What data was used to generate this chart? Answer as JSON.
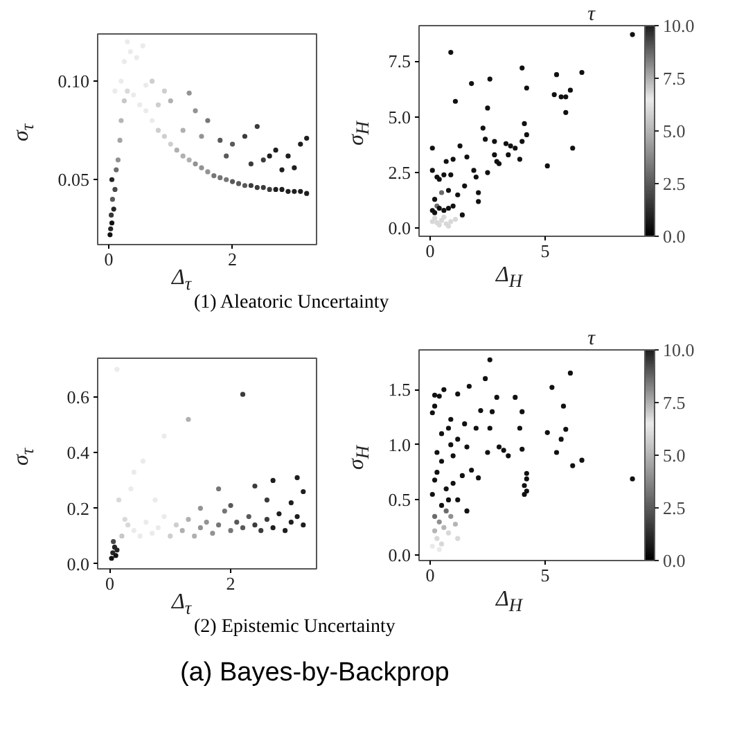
{
  "chart_data": [
    {
      "type": "scatter",
      "xlabel": "Δ$_{τ}$",
      "ylabel": "σ$_{τ}$",
      "marker": "circle",
      "annotations": [
        "(1) Aleatoric Uncertainty"
      ],
      "xlim": [
        -0.18,
        3.36
      ],
      "ylim": [
        0.017,
        0.124
      ],
      "xticks": [
        0,
        2
      ],
      "yticks": [
        {
          "value": 0.05,
          "label": "0.05"
        },
        {
          "value": 0.1,
          "label": "0.10"
        }
      ],
      "x": [
        0.02,
        0.03,
        0.05,
        0.04,
        0.08,
        0.06,
        0.1,
        0.05,
        0.12,
        0.15,
        0.18,
        0.2,
        0.25,
        0.3,
        0.2,
        0.25,
        0.35,
        0.3,
        0.45,
        0.55,
        0.1,
        0.4,
        0.5,
        0.6,
        0.7,
        0.8,
        0.9,
        1.0,
        1.1,
        1.2,
        1.3,
        1.4,
        1.5,
        1.6,
        1.7,
        1.8,
        1.9,
        2.0,
        2.1,
        2.2,
        2.3,
        2.4,
        2.5,
        2.6,
        2.7,
        2.8,
        2.9,
        3.0,
        3.1,
        3.2,
        0.7,
        0.9,
        1.0,
        1.3,
        1.4,
        1.6,
        1.8,
        2.0,
        2.2,
        2.4,
        2.5,
        2.7,
        2.9,
        3.1,
        3.2,
        0.6,
        0.8,
        1.2,
        1.5,
        1.9,
        2.3,
        2.6,
        2.8,
        3.0
      ],
      "values": [
        0.022,
        0.025,
        0.028,
        0.032,
        0.035,
        0.04,
        0.045,
        0.05,
        0.055,
        0.06,
        0.07,
        0.08,
        0.09,
        0.095,
        0.1,
        0.11,
        0.115,
        0.12,
        0.112,
        0.118,
        0.095,
        0.093,
        0.088,
        0.085,
        0.08,
        0.075,
        0.072,
        0.068,
        0.065,
        0.062,
        0.06,
        0.058,
        0.056,
        0.054,
        0.052,
        0.051,
        0.05,
        0.049,
        0.048,
        0.047,
        0.047,
        0.046,
        0.046,
        0.045,
        0.045,
        0.045,
        0.044,
        0.044,
        0.044,
        0.043,
        0.1,
        0.095,
        0.09,
        0.094,
        0.085,
        0.08,
        0.07,
        0.068,
        0.072,
        0.077,
        0.06,
        0.065,
        0.062,
        0.068,
        0.071,
        0.098,
        0.088,
        0.075,
        0.072,
        0.062,
        0.058,
        0.062,
        0.055,
        0.056
      ],
      "colors": [
        "#121212",
        "#242424",
        "#121212",
        "#363636",
        "#242424",
        "#5a5a5a",
        "#484848",
        "#242424",
        "#6c6c6c",
        "#919191",
        "#a3a3a3",
        "#b5b5b5",
        "#c7c7c7",
        "#d9d9d9",
        "#ebebeb",
        "#ebebeb",
        "#ebebeb",
        "#ebebeb",
        "#ebebeb",
        "#ebebeb",
        "#ebebeb",
        "#ebebeb",
        "#ebebeb",
        "#ebebeb",
        "#ebebeb",
        "#cecece",
        "#cecece",
        "#cecece",
        "#b0b0b0",
        "#b0b0b0",
        "#b0b0b0",
        "#939393",
        "#939393",
        "#939393",
        "#767676",
        "#767676",
        "#767676",
        "#595959",
        "#595959",
        "#595959",
        "#3b3b3b",
        "#3b3b3b",
        "#3b3b3b",
        "#3b3b3b",
        "#1e1e1e",
        "#1e1e1e",
        "#1e1e1e",
        "#1e1e1e",
        "#1e1e1e",
        "#1e1e1e",
        "#cecece",
        "#cecece",
        "#b0b0b0",
        "#939393",
        "#939393",
        "#767676",
        "#595959",
        "#595959",
        "#3b3b3b",
        "#3b3b3b",
        "#3b3b3b",
        "#1e1e1e",
        "#1e1e1e",
        "#1e1e1e",
        "#1e1e1e",
        "#ebebeb",
        "#cecece",
        "#b0b0b0",
        "#939393",
        "#595959",
        "#3b3b3b",
        "#1e1e1e",
        "#1e1e1e",
        "#1e1e1e"
      ]
    },
    {
      "type": "scatter",
      "xlabel": "Δ$_{H}$",
      "ylabel": "σ$_{H}$",
      "marker": "circle",
      "clabel": "τ",
      "clim": [
        0,
        10
      ],
      "cticks": [
        {
          "value": 0,
          "label": "0.0"
        },
        {
          "value": 2.5,
          "label": "2.5"
        },
        {
          "value": 5,
          "label": "5.0"
        },
        {
          "value": 7.5,
          "label": "7.5"
        },
        {
          "value": 10,
          "label": "10.0"
        }
      ],
      "xlim": [
        -0.48,
        9.34
      ],
      "ylim": [
        -0.36,
        9.1
      ],
      "xticks": [
        0,
        5
      ],
      "yticks": [
        {
          "value": 0,
          "label": "0.0"
        },
        {
          "value": 2.5,
          "label": "2.5"
        },
        {
          "value": 5,
          "label": "5.0"
        },
        {
          "value": 7.5,
          "label": "7.5"
        }
      ],
      "x": [
        0.9,
        1.1,
        1.8,
        2.6,
        2.5,
        4.0,
        4.2,
        5.5,
        5.4,
        5.7,
        5.9,
        6.1,
        6.6,
        5.9,
        6.2,
        5.1,
        8.8,
        2.3,
        2.4,
        2.8,
        3.3,
        3.5,
        3.7,
        4.1,
        4.0,
        4.2,
        3.9,
        3.4,
        2.8,
        2.9,
        3.0,
        2.5,
        1.3,
        1.6,
        0.1,
        0.1,
        0.3,
        0.4,
        0.6,
        0.9,
        0.7,
        1.0,
        1.9,
        2.0,
        2.1,
        2.1,
        1.5,
        1.2,
        0.8,
        0.5,
        0.2,
        0.3,
        0.1,
        0.2,
        0.4,
        0.6,
        0.8,
        1.0,
        1.4,
        0.1,
        0.3,
        0.5,
        0.7,
        0.9,
        0.2,
        0.6,
        1.1,
        0.4,
        0.8
      ],
      "values": [
        7.9,
        5.7,
        6.5,
        6.7,
        5.4,
        7.2,
        6.3,
        6.9,
        6.0,
        5.9,
        5.9,
        6.2,
        7.0,
        5.2,
        3.6,
        2.8,
        8.7,
        4.5,
        4.0,
        3.9,
        3.8,
        3.7,
        3.6,
        4.7,
        3.9,
        4.2,
        3.1,
        3.3,
        3.3,
        3.0,
        2.9,
        2.5,
        3.7,
        3.2,
        3.6,
        2.6,
        2.3,
        2.2,
        2.4,
        2.4,
        3.0,
        3.1,
        2.6,
        2.3,
        1.6,
        1.2,
        1.9,
        1.5,
        1.7,
        1.6,
        1.3,
        1.0,
        0.8,
        0.7,
        0.9,
        0.8,
        0.9,
        1.0,
        0.6,
        0.3,
        0.25,
        0.35,
        0.2,
        0.3,
        0.45,
        0.5,
        0.4,
        0.15,
        0.1
      ],
      "cvalues": [
        0.5,
        0.5,
        0.5,
        0.5,
        0.5,
        0.5,
        0.5,
        0.5,
        0.5,
        0.5,
        0.5,
        0.5,
        0.5,
        0.5,
        0.5,
        0.5,
        0.5,
        0.5,
        0.5,
        0.5,
        0.5,
        0.5,
        0.5,
        0.5,
        0.5,
        0.5,
        0.5,
        0.5,
        0.5,
        0.5,
        0.5,
        0.5,
        0.5,
        0.5,
        0.5,
        0.5,
        0.5,
        0.5,
        0.5,
        0.5,
        0.5,
        0.5,
        0.5,
        0.5,
        0.5,
        0.5,
        0.5,
        0.5,
        0.5,
        3,
        0.5,
        3,
        0.5,
        0.5,
        0.5,
        0.5,
        0.5,
        0.5,
        0.5,
        6,
        6,
        6,
        6,
        6,
        6,
        6,
        6,
        6,
        6
      ]
    },
    {
      "type": "scatter",
      "xlabel": "Δ$_{τ}$",
      "ylabel": "σ$_{τ}$",
      "marker": "circle",
      "annotations": [
        "(2) Epistemic Uncertainty",
        "(a) Bayes-by-Backprop"
      ],
      "xlim": [
        -0.2,
        3.42
      ],
      "ylim": [
        -0.018,
        0.74
      ],
      "xticks": [
        0,
        2
      ],
      "yticks": [
        {
          "value": 0,
          "label": "0.0"
        },
        {
          "value": 0.2,
          "label": "0.2"
        },
        {
          "value": 0.4,
          "label": "0.4"
        },
        {
          "value": 0.6,
          "label": "0.6"
        }
      ],
      "x": [
        0.03,
        0.05,
        0.08,
        0.1,
        0.06,
        0.12,
        0.12,
        0.15,
        0.35,
        0.4,
        0.55,
        0.75,
        0.9,
        1.3,
        2.2,
        0.2,
        0.3,
        0.4,
        0.5,
        0.6,
        0.7,
        0.8,
        0.9,
        1.0,
        1.1,
        1.2,
        1.3,
        1.4,
        1.5,
        1.6,
        1.7,
        1.8,
        1.9,
        2.0,
        2.1,
        2.2,
        2.3,
        2.4,
        2.5,
        2.6,
        2.7,
        2.8,
        2.9,
        3.0,
        3.1,
        3.2,
        0.25,
        1.5,
        2.4,
        2.7,
        3.1,
        3.2,
        1.8,
        2.0,
        2.6,
        3.0
      ],
      "values": [
        0.02,
        0.04,
        0.06,
        0.03,
        0.08,
        0.05,
        0.7,
        0.23,
        0.27,
        0.33,
        0.37,
        0.23,
        0.46,
        0.52,
        0.61,
        0.1,
        0.14,
        0.12,
        0.1,
        0.15,
        0.11,
        0.13,
        0.17,
        0.1,
        0.14,
        0.12,
        0.16,
        0.1,
        0.13,
        0.15,
        0.11,
        0.14,
        0.19,
        0.12,
        0.15,
        0.13,
        0.17,
        0.14,
        0.12,
        0.16,
        0.13,
        0.18,
        0.12,
        0.15,
        0.17,
        0.14,
        0.16,
        0.2,
        0.28,
        0.3,
        0.31,
        0.26,
        0.27,
        0.21,
        0.23,
        0.22
      ],
      "colors": [
        "#121212",
        "#242424",
        "#242424",
        "#121212",
        "#484848",
        "#242424",
        "#ebebeb",
        "#d9d9d9",
        "#ebebeb",
        "#ebebeb",
        "#ebebeb",
        "#ebebeb",
        "#ebebeb",
        "#b0b0b0",
        "#3b3b3b",
        "#c7c7c7",
        "#d9d9d9",
        "#ebebeb",
        "#ebebeb",
        "#ebebeb",
        "#ebebeb",
        "#ebebeb",
        "#ebebeb",
        "#cecece",
        "#cecece",
        "#b0b0b0",
        "#b0b0b0",
        "#b0b0b0",
        "#939393",
        "#939393",
        "#939393",
        "#767676",
        "#767676",
        "#767676",
        "#595959",
        "#595959",
        "#595959",
        "#3b3b3b",
        "#3b3b3b",
        "#3b3b3b",
        "#1e1e1e",
        "#1e1e1e",
        "#1e1e1e",
        "#1e1e1e",
        "#1e1e1e",
        "#1e1e1e",
        "#d9d9d9",
        "#939393",
        "#3b3b3b",
        "#1e1e1e",
        "#1e1e1e",
        "#1e1e1e",
        "#767676",
        "#595959",
        "#3b3b3b",
        "#1e1e1e"
      ]
    },
    {
      "type": "scatter",
      "xlabel": "Δ$_{H}$",
      "ylabel": "σ$_{H}$",
      "marker": "circle",
      "clabel": "τ",
      "clim": [
        0,
        10
      ],
      "cticks": [
        {
          "value": 0,
          "label": "0.0"
        },
        {
          "value": 2.5,
          "label": "2.5"
        },
        {
          "value": 5,
          "label": "5.0"
        },
        {
          "value": 7.5,
          "label": "7.5"
        },
        {
          "value": 10,
          "label": "10.0"
        }
      ],
      "xlim": [
        -0.48,
        9.34
      ],
      "ylim": [
        -0.05,
        1.86
      ],
      "xticks": [
        0,
        5
      ],
      "yticks": [
        {
          "value": 0,
          "label": "0.0"
        },
        {
          "value": 0.5,
          "label": "0.5"
        },
        {
          "value": 1,
          "label": "1.0"
        },
        {
          "value": 1.5,
          "label": "1.5"
        }
      ],
      "x": [
        2.6,
        6.1,
        2.4,
        5.3,
        0.6,
        1.7,
        0.2,
        0.4,
        1.2,
        2.9,
        3.7,
        5.8,
        2.2,
        2.7,
        4.0,
        0.9,
        0.8,
        1.5,
        2.0,
        2.6,
        3.9,
        5.1,
        5.9,
        0.1,
        0.2,
        0.5,
        1.2,
        0.9,
        1.6,
        3.0,
        3.2,
        3.4,
        4.0,
        5.5,
        5.7,
        6.6,
        6.2,
        2.5,
        0.3,
        0.5,
        1.0,
        4.2,
        4.2,
        4.1,
        4.2,
        4.1,
        8.8,
        2.1,
        1.8,
        1.4,
        1.0,
        0.7,
        0.3,
        0.2,
        0.1,
        0.5,
        0.8,
        1.2,
        1.6,
        0.2,
        0.4,
        0.6,
        0.8,
        0.3,
        0.1,
        0.5,
        0.9,
        1.1,
        0.2,
        0.7,
        1.2,
        0.4
      ],
      "values": [
        1.77,
        1.65,
        1.6,
        1.52,
        1.5,
        1.53,
        1.45,
        1.44,
        1.46,
        1.43,
        1.43,
        1.35,
        1.31,
        1.3,
        1.3,
        1.23,
        1.15,
        1.19,
        1.15,
        1.15,
        1.15,
        1.11,
        1.14,
        1.29,
        1.35,
        1.1,
        1.05,
        1.0,
        0.98,
        0.98,
        0.95,
        0.9,
        0.96,
        0.93,
        1.05,
        0.86,
        0.81,
        0.93,
        0.93,
        0.85,
        0.9,
        0.74,
        0.69,
        0.63,
        0.58,
        0.55,
        0.69,
        0.7,
        0.77,
        0.72,
        0.65,
        0.6,
        0.75,
        0.68,
        0.55,
        0.45,
        0.5,
        0.5,
        0.4,
        0.35,
        0.3,
        0.25,
        0.2,
        0.15,
        0.08,
        0.1,
        0.35,
        0.28,
        0.22,
        0.4,
        0.15,
        0.05
      ],
      "cvalues": [
        0.5,
        0.5,
        0.5,
        0.5,
        0.5,
        0.5,
        0.5,
        0.5,
        0.5,
        0.5,
        0.5,
        0.5,
        0.5,
        0.5,
        0.5,
        0.5,
        0.5,
        0.5,
        0.5,
        0.5,
        0.5,
        0.5,
        0.5,
        0.5,
        0.5,
        0.5,
        0.5,
        0.5,
        0.5,
        0.5,
        0.5,
        0.5,
        0.5,
        0.5,
        0.5,
        0.5,
        0.5,
        0.5,
        0.5,
        0.5,
        0.5,
        0.5,
        0.5,
        0.5,
        0.5,
        0.5,
        0.5,
        0.5,
        0.5,
        0.5,
        0.5,
        0.5,
        0.5,
        0.5,
        0.5,
        0.5,
        0.5,
        0.5,
        0.5,
        3,
        4,
        5,
        6,
        6,
        6.5,
        6,
        4,
        5,
        5,
        3,
        6,
        6.5
      ]
    }
  ]
}
